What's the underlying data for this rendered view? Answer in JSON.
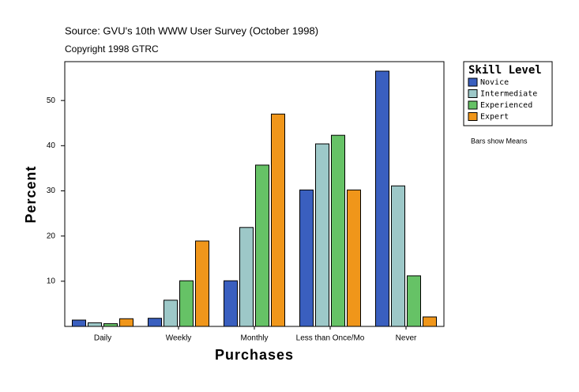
{
  "chart_data": {
    "type": "bar",
    "subtitle": "Source: GVU's 10th WWW User Survey (October 1998)",
    "title": "Copyright 1998 GTRC",
    "x_label": "Purchases",
    "y_label": "Percent",
    "legend_title": "Skill Level",
    "note": "Bars show Means",
    "categories": [
      "Daily",
      "Weekly",
      "Monthly",
      "Less than Once/Mo",
      "Never"
    ],
    "series": [
      {
        "name": "Novice",
        "color": "#3a5fbf",
        "values": [
          1.4,
          1.8,
          10.1,
          30.2,
          56.5
        ]
      },
      {
        "name": "Intermediate",
        "color": "#9dc8c8",
        "values": [
          0.8,
          5.8,
          21.9,
          40.4,
          31.1
        ]
      },
      {
        "name": "Experienced",
        "color": "#66c266",
        "values": [
          0.6,
          10.1,
          35.7,
          42.3,
          11.2
        ]
      },
      {
        "name": "Expert",
        "color": "#f0961a",
        "values": [
          1.7,
          18.9,
          47.0,
          30.2,
          2.1
        ]
      }
    ],
    "ylim": [
      0,
      58.6
    ],
    "yticks": [
      10,
      20,
      30,
      40,
      50
    ],
    "grid": false
  }
}
